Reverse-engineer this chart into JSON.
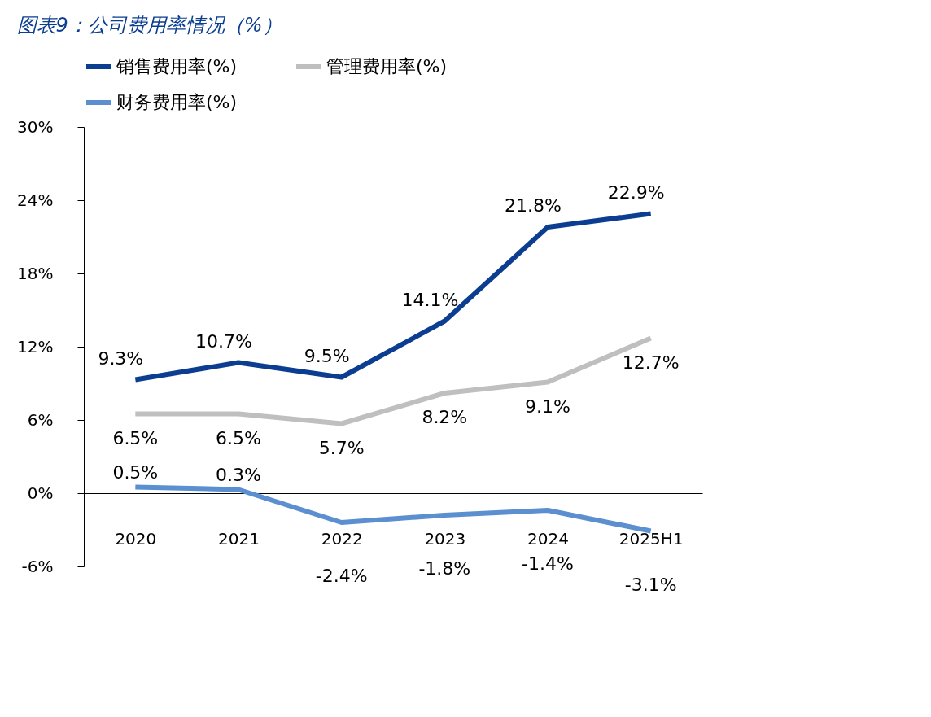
{
  "chart_data": {
    "type": "line",
    "title": "图表9：公司费用率情况（%）",
    "categories": [
      "2020",
      "2021",
      "2022",
      "2023",
      "2024",
      "2025H1"
    ],
    "series": [
      {
        "name": "销售费用率(%)",
        "color": "#0b3d91",
        "values": [
          9.3,
          10.7,
          9.5,
          14.1,
          21.8,
          22.9
        ],
        "value_labels": [
          "9.3%",
          "10.7%",
          "9.5%",
          "14.1%",
          "21.8%",
          "22.9%"
        ]
      },
      {
        "name": "管理费用率(%)",
        "color": "#bfbfbf",
        "values": [
          6.5,
          6.5,
          5.7,
          8.2,
          9.1,
          12.7
        ],
        "value_labels": [
          "6.5%",
          "6.5%",
          "5.7%",
          "8.2%",
          "9.1%",
          "12.7%"
        ]
      },
      {
        "name": "财务费用率(%)",
        "color": "#5b8fd0",
        "values": [
          0.5,
          0.3,
          -2.4,
          -1.8,
          -1.4,
          -3.1
        ],
        "value_labels": [
          "0.5%",
          "0.3%",
          "-2.4%",
          "-1.8%",
          "-1.4%",
          "-3.1%"
        ]
      }
    ],
    "ylim": [
      -6,
      30
    ],
    "yticks": [
      {
        "value": -6,
        "label": "-6%"
      },
      {
        "value": 0,
        "label": "0%"
      },
      {
        "value": 6,
        "label": "6%"
      },
      {
        "value": 12,
        "label": "12%"
      },
      {
        "value": 18,
        "label": "18%"
      },
      {
        "value": 24,
        "label": "24%"
      },
      {
        "value": 30,
        "label": "30%"
      }
    ],
    "grid": false,
    "legend": "top",
    "marker": "none",
    "line_style": "solid"
  }
}
